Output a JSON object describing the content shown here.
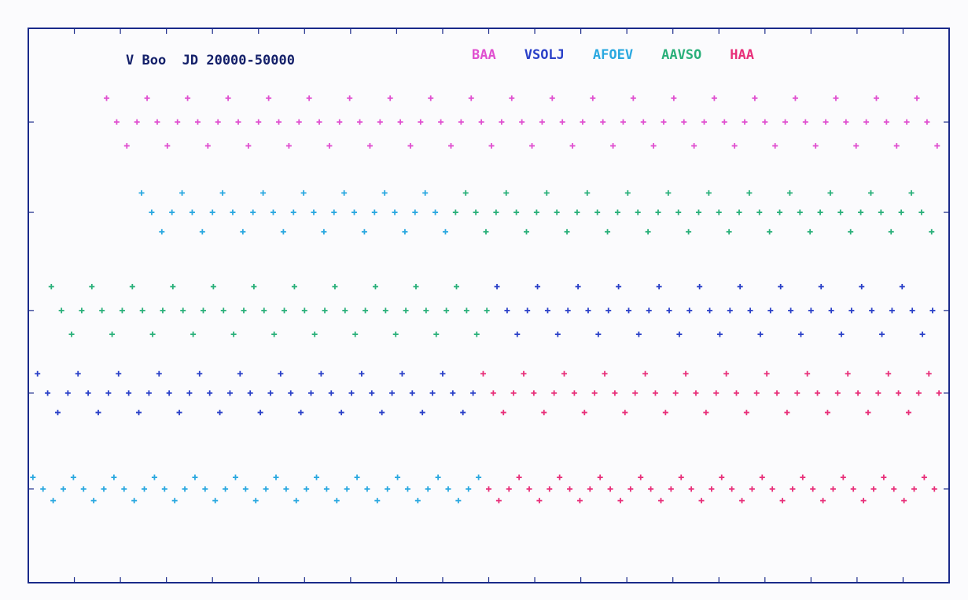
{
  "chart_data": {
    "type": "scatter",
    "title": "V Boo  JD 20000-50000",
    "xlim": [
      0,
      100
    ],
    "ylim": [
      0,
      100
    ],
    "xticks": [
      0,
      5,
      10,
      15,
      20,
      25,
      30,
      35,
      40,
      45,
      50,
      55,
      60,
      65,
      70,
      75,
      80,
      85,
      90,
      95,
      100
    ],
    "yticks": [
      16.9,
      34.2,
      49.1,
      66.8,
      83.1
    ],
    "legend": "top-right",
    "series": [
      {
        "name": "BAA",
        "color": "#e050d0",
        "x": [
          8.5,
          9.6,
          10.7,
          11.8,
          12.9,
          14.0,
          15.1,
          16.2,
          17.3,
          18.4,
          19.5,
          20.6,
          21.7,
          22.8,
          23.9,
          25.0,
          26.1,
          27.2,
          28.3,
          29.4,
          30.5,
          31.6,
          32.7,
          33.8,
          34.9,
          36.0,
          37.1,
          38.2,
          39.3,
          40.4,
          41.5,
          42.6,
          43.7,
          44.8,
          45.9,
          47.0,
          48.1,
          49.2,
          50.3,
          51.4,
          52.5,
          53.6,
          54.7,
          55.8,
          56.9,
          58.0,
          59.1,
          60.2,
          61.3,
          62.4,
          63.5,
          64.6,
          65.7,
          66.8,
          67.9,
          69.0,
          70.1,
          71.2,
          72.3,
          73.4,
          74.5,
          75.6,
          76.7,
          77.8,
          78.9,
          80.0,
          81.1,
          82.2,
          83.3,
          84.4,
          85.5,
          86.6,
          87.7,
          88.8,
          89.9,
          91.0,
          92.1,
          93.2,
          94.3,
          95.4,
          96.5,
          97.6,
          98.7
        ],
        "values": [
          87.4,
          83.1,
          78.8,
          83.1,
          87.4,
          83.1,
          78.8,
          83.1,
          87.4,
          83.1,
          78.8,
          83.1,
          87.4,
          83.1,
          78.8,
          83.1,
          87.4,
          83.1,
          78.8,
          83.1,
          87.4,
          83.1,
          78.8,
          83.1,
          87.4,
          83.1,
          78.8,
          83.1,
          87.4,
          83.1,
          78.8,
          83.1,
          87.4,
          83.1,
          78.8,
          83.1,
          87.4,
          83.1,
          78.8,
          83.1,
          87.4,
          83.1,
          78.8,
          83.1,
          87.4,
          83.1,
          78.8,
          83.1,
          87.4,
          83.1,
          78.8,
          83.1,
          87.4,
          83.1,
          78.8,
          83.1,
          87.4,
          83.1,
          78.8,
          83.1,
          87.4,
          83.1,
          78.8,
          83.1,
          87.4,
          83.1,
          78.8,
          83.1,
          87.4,
          83.1,
          78.8,
          83.1,
          87.4,
          83.1,
          78.8,
          83.1,
          87.4,
          83.1,
          78.8,
          83.1,
          87.4,
          83.1,
          78.8
        ]
      },
      {
        "name": "VSOLJ",
        "color": "#2a40c8",
        "x": [
          50.9,
          52.0,
          53.1,
          54.2,
          55.3,
          56.4,
          57.5,
          58.6,
          59.7,
          60.8,
          61.9,
          63.0,
          64.1,
          65.2,
          66.3,
          67.4,
          68.5,
          69.6,
          70.7,
          71.8,
          72.9,
          74.0,
          75.1,
          76.2,
          77.3,
          78.4,
          79.5,
          80.6,
          81.7,
          82.8,
          83.9,
          85.0,
          86.1,
          87.2,
          88.3,
          89.4,
          90.5,
          91.6,
          92.7,
          93.8,
          94.9,
          96.0,
          97.1,
          98.2,
          1.0,
          2.1,
          3.2,
          4.3,
          5.4,
          6.5,
          7.6,
          8.7,
          9.8,
          10.9,
          12.0,
          13.1,
          14.2,
          15.3,
          16.4,
          17.5,
          18.6,
          19.7,
          20.8,
          21.9,
          23.0,
          24.1,
          25.2,
          26.3,
          27.4,
          28.5,
          29.6,
          30.7,
          31.8,
          32.9,
          34.0,
          35.1,
          36.2,
          37.3,
          38.4,
          39.5,
          40.6,
          41.7,
          42.8,
          43.9,
          45.0,
          46.1,
          47.2,
          48.3
        ],
        "values": [
          53.4,
          49.1,
          44.8,
          49.1,
          53.4,
          49.1,
          44.8,
          49.1,
          53.4,
          49.1,
          44.8,
          49.1,
          53.4,
          49.1,
          44.8,
          49.1,
          53.4,
          49.1,
          44.8,
          49.1,
          53.4,
          49.1,
          44.8,
          49.1,
          53.4,
          49.1,
          44.8,
          49.1,
          53.4,
          49.1,
          44.8,
          49.1,
          53.4,
          49.1,
          44.8,
          49.1,
          53.4,
          49.1,
          44.8,
          49.1,
          53.4,
          49.1,
          44.8,
          49.1,
          37.7,
          34.2,
          30.7,
          34.2,
          37.7,
          34.2,
          30.7,
          34.2,
          37.7,
          34.2,
          30.7,
          34.2,
          37.7,
          34.2,
          30.7,
          34.2,
          37.7,
          34.2,
          30.7,
          34.2,
          37.7,
          34.2,
          30.7,
          34.2,
          37.7,
          34.2,
          30.7,
          34.2,
          37.7,
          34.2,
          30.7,
          34.2,
          37.7,
          34.2,
          30.7,
          34.2,
          37.7,
          34.2,
          30.7,
          34.2,
          37.7,
          34.2,
          30.7,
          34.2
        ]
      },
      {
        "name": "AFOEV",
        "color": "#2aa8e0",
        "x": [
          12.3,
          13.4,
          14.5,
          15.6,
          16.7,
          17.8,
          18.9,
          20.0,
          21.1,
          22.2,
          23.3,
          24.4,
          25.5,
          26.6,
          27.7,
          28.8,
          29.9,
          31.0,
          32.1,
          33.2,
          34.3,
          35.4,
          36.5,
          37.6,
          38.7,
          39.8,
          40.9,
          42.0,
          43.1,
          44.2,
          45.3,
          0.5,
          1.6,
          2.7,
          3.8,
          4.9,
          6.0,
          7.1,
          8.2,
          9.3,
          10.4,
          11.5,
          12.6,
          13.7,
          14.8,
          15.9,
          17.0,
          18.1,
          19.2,
          20.3,
          21.4,
          22.5,
          23.6,
          24.7,
          25.8,
          26.9,
          28.0,
          29.1,
          30.2,
          31.3,
          32.4,
          33.5,
          34.6,
          35.7,
          36.8,
          37.9,
          39.0,
          40.1,
          41.2,
          42.3,
          43.4,
          44.5,
          45.6,
          46.7,
          47.8,
          48.9
        ],
        "values": [
          70.3,
          66.8,
          63.3,
          66.8,
          70.3,
          66.8,
          63.3,
          66.8,
          70.3,
          66.8,
          63.3,
          66.8,
          70.3,
          66.8,
          63.3,
          66.8,
          70.3,
          66.8,
          63.3,
          66.8,
          70.3,
          66.8,
          63.3,
          66.8,
          70.3,
          66.8,
          63.3,
          66.8,
          70.3,
          66.8,
          63.3,
          19.0,
          16.9,
          14.8,
          16.9,
          19.0,
          16.9,
          14.8,
          16.9,
          19.0,
          16.9,
          14.8,
          16.9,
          19.0,
          16.9,
          14.8,
          16.9,
          19.0,
          16.9,
          14.8,
          16.9,
          19.0,
          16.9,
          14.8,
          16.9,
          19.0,
          16.9,
          14.8,
          16.9,
          19.0,
          16.9,
          14.8,
          16.9,
          19.0,
          16.9,
          14.8,
          16.9,
          19.0,
          16.9,
          14.8,
          16.9,
          19.0,
          16.9,
          14.8,
          16.9,
          19.0
        ]
      },
      {
        "name": "AAVSO",
        "color": "#2ab07a",
        "x": [
          46.4,
          47.5,
          48.6,
          49.7,
          50.8,
          51.9,
          53.0,
          54.1,
          55.2,
          56.3,
          57.4,
          58.5,
          59.6,
          60.7,
          61.8,
          62.9,
          64.0,
          65.1,
          66.2,
          67.3,
          68.4,
          69.5,
          70.6,
          71.7,
          72.8,
          73.9,
          75.0,
          76.1,
          77.2,
          78.3,
          79.4,
          80.5,
          81.6,
          82.7,
          83.8,
          84.9,
          86.0,
          87.1,
          88.2,
          89.3,
          90.4,
          91.5,
          92.6,
          93.7,
          94.8,
          95.9,
          97.0,
          98.1,
          2.5,
          3.6,
          4.7,
          5.8,
          6.9,
          8.0,
          9.1,
          10.2,
          11.3,
          12.4,
          13.5,
          14.6,
          15.7,
          16.8,
          17.9,
          19.0,
          20.1,
          21.2,
          22.3,
          23.4,
          24.5,
          25.6,
          26.7,
          27.8,
          28.9,
          30.0,
          31.1,
          32.2,
          33.3,
          34.4,
          35.5,
          36.6,
          37.7,
          38.8,
          39.9,
          41.0,
          42.1,
          43.2,
          44.3,
          45.4,
          46.5,
          47.6,
          48.7,
          49.8
        ],
        "values": [
          66.8,
          70.3,
          66.8,
          63.3,
          66.8,
          70.3,
          66.8,
          63.3,
          66.8,
          70.3,
          66.8,
          63.3,
          66.8,
          70.3,
          66.8,
          63.3,
          66.8,
          70.3,
          66.8,
          63.3,
          66.8,
          70.3,
          66.8,
          63.3,
          66.8,
          70.3,
          66.8,
          63.3,
          66.8,
          70.3,
          66.8,
          63.3,
          66.8,
          70.3,
          66.8,
          63.3,
          66.8,
          70.3,
          66.8,
          63.3,
          66.8,
          70.3,
          66.8,
          63.3,
          66.8,
          70.3,
          66.8,
          63.3,
          53.4,
          49.1,
          44.8,
          49.1,
          53.4,
          49.1,
          44.8,
          49.1,
          53.4,
          49.1,
          44.8,
          49.1,
          53.4,
          49.1,
          44.8,
          49.1,
          53.4,
          49.1,
          44.8,
          49.1,
          53.4,
          49.1,
          44.8,
          49.1,
          53.4,
          49.1,
          44.8,
          49.1,
          53.4,
          49.1,
          44.8,
          49.1,
          53.4,
          49.1,
          44.8,
          49.1,
          53.4,
          49.1,
          44.8,
          49.1,
          53.4,
          49.1,
          44.8,
          49.1
        ]
      },
      {
        "name": "HAA",
        "color": "#e8307a",
        "x": [
          49.4,
          50.5,
          51.6,
          52.7,
          53.8,
          54.9,
          56.0,
          57.1,
          58.2,
          59.3,
          60.4,
          61.5,
          62.6,
          63.7,
          64.8,
          65.9,
          67.0,
          68.1,
          69.2,
          70.3,
          71.4,
          72.5,
          73.6,
          74.7,
          75.8,
          76.9,
          78.0,
          79.1,
          80.2,
          81.3,
          82.4,
          83.5,
          84.6,
          85.7,
          86.8,
          87.9,
          89.0,
          90.1,
          91.2,
          92.3,
          93.4,
          94.5,
          95.6,
          96.7,
          97.8,
          98.9,
          50.0,
          51.1,
          52.2,
          53.3,
          54.4,
          55.5,
          56.6,
          57.7,
          58.8,
          59.9,
          61.0,
          62.1,
          63.2,
          64.3,
          65.4,
          66.5,
          67.6,
          68.7,
          69.8,
          70.9,
          72.0,
          73.1,
          74.2,
          75.3,
          76.4,
          77.5,
          78.6,
          79.7,
          80.8,
          81.9,
          83.0,
          84.1,
          85.2,
          86.3,
          87.4,
          88.5,
          89.6,
          90.7,
          91.8,
          92.9,
          94.0,
          95.1,
          96.2,
          97.3,
          98.4
        ],
        "values": [
          37.7,
          34.2,
          30.7,
          34.2,
          37.7,
          34.2,
          30.7,
          34.2,
          37.7,
          34.2,
          30.7,
          34.2,
          37.7,
          34.2,
          30.7,
          34.2,
          37.7,
          34.2,
          30.7,
          34.2,
          37.7,
          34.2,
          30.7,
          34.2,
          37.7,
          34.2,
          30.7,
          34.2,
          37.7,
          34.2,
          30.7,
          34.2,
          37.7,
          34.2,
          30.7,
          34.2,
          37.7,
          34.2,
          30.7,
          34.2,
          37.7,
          34.2,
          30.7,
          34.2,
          37.7,
          34.2,
          16.9,
          14.8,
          16.9,
          19.0,
          16.9,
          14.8,
          16.9,
          19.0,
          16.9,
          14.8,
          16.9,
          19.0,
          16.9,
          14.8,
          16.9,
          19.0,
          16.9,
          14.8,
          16.9,
          19.0,
          16.9,
          14.8,
          16.9,
          19.0,
          16.9,
          14.8,
          16.9,
          19.0,
          16.9,
          14.8,
          16.9,
          19.0,
          16.9,
          14.8,
          16.9,
          19.0,
          16.9,
          14.8,
          16.9,
          19.0,
          16.9,
          14.8,
          16.9,
          19.0,
          16.9
        ]
      }
    ]
  }
}
